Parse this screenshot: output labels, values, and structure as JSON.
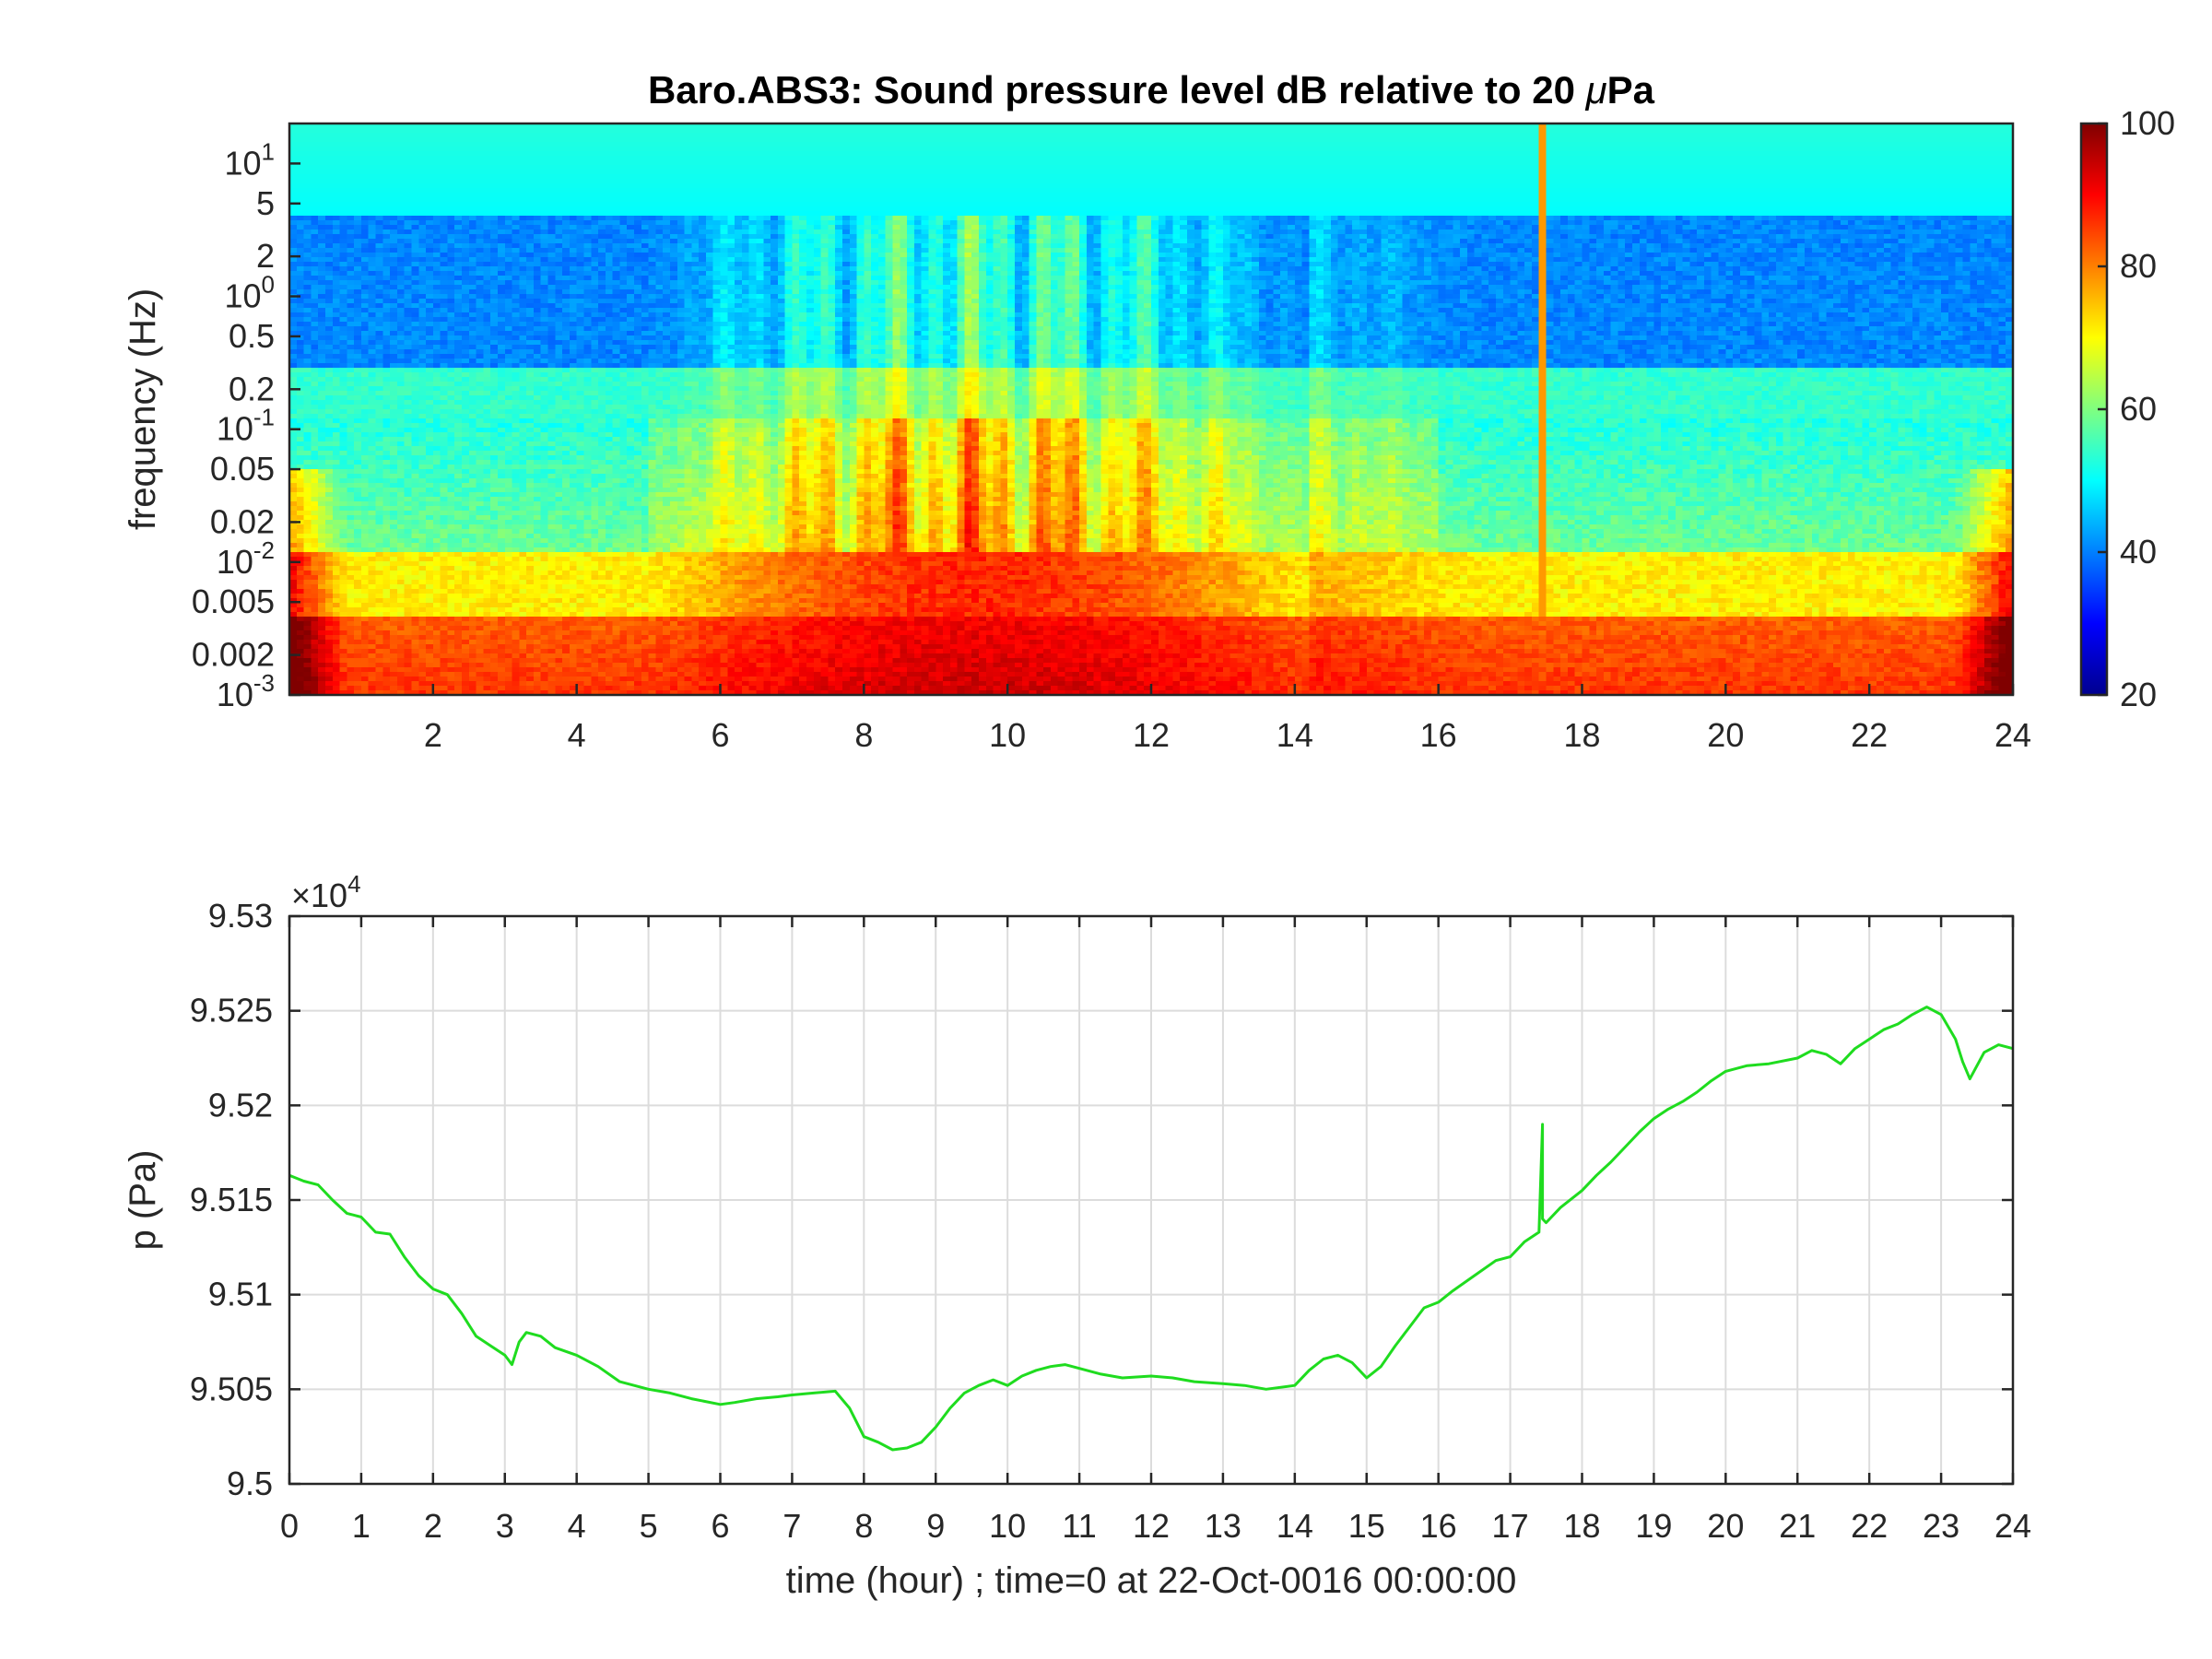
{
  "chart_data": [
    {
      "type": "heatmap",
      "title_prefix": "Baro.ABS3: Sound pressure level dB relative to 20 ",
      "title_mu": "μ",
      "title_suffix": "Pa",
      "xlabel": "",
      "ylabel": "frequency (Hz)",
      "xlim": [
        0,
        24
      ],
      "ylim": [
        0.001,
        20
      ],
      "yscale": "log",
      "x_ticks": [
        {
          "v": 2,
          "label": "2"
        },
        {
          "v": 4,
          "label": "4"
        },
        {
          "v": 6,
          "label": "6"
        },
        {
          "v": 8,
          "label": "8"
        },
        {
          "v": 10,
          "label": "10"
        },
        {
          "v": 12,
          "label": "12"
        },
        {
          "v": 14,
          "label": "14"
        },
        {
          "v": 16,
          "label": "16"
        },
        {
          "v": 18,
          "label": "18"
        },
        {
          "v": 20,
          "label": "20"
        },
        {
          "v": 22,
          "label": "22"
        },
        {
          "v": 24,
          "label": "24"
        }
      ],
      "y_ticks": [
        {
          "v": 10,
          "base": "10",
          "exp": "1",
          "label": ""
        },
        {
          "v": 5,
          "base": "",
          "exp": "",
          "label": "5"
        },
        {
          "v": 2,
          "base": "",
          "exp": "",
          "label": "2"
        },
        {
          "v": 1,
          "base": "10",
          "exp": "0",
          "label": ""
        },
        {
          "v": 0.5,
          "base": "",
          "exp": "",
          "label": "0.5"
        },
        {
          "v": 0.2,
          "base": "",
          "exp": "",
          "label": "0.2"
        },
        {
          "v": 0.1,
          "base": "10",
          "exp": "-1",
          "label": ""
        },
        {
          "v": 0.05,
          "base": "",
          "exp": "",
          "label": "0.05"
        },
        {
          "v": 0.02,
          "base": "",
          "exp": "",
          "label": "0.02"
        },
        {
          "v": 0.01,
          "base": "10",
          "exp": "-2",
          "label": ""
        },
        {
          "v": 0.005,
          "base": "",
          "exp": "",
          "label": "0.005"
        },
        {
          "v": 0.002,
          "base": "",
          "exp": "",
          "label": "0.002"
        },
        {
          "v": 0.001,
          "base": "10",
          "exp": "-3",
          "label": ""
        }
      ],
      "colormap": "jet",
      "clim": [
        20,
        100
      ],
      "colorbar_ticks": [
        "20",
        "40",
        "60",
        "80",
        "100"
      ],
      "colorbar_tick_values": [
        20,
        40,
        60,
        80,
        100
      ],
      "z_units": "dB",
      "z_description_by_time_freq": [
        {
          "x_range": [
            0,
            6
          ],
          "f_high_band_db": 52,
          "f_1Hz_db": 38,
          "f_0.05Hz_db": 55,
          "f_0.002Hz_db": 85
        },
        {
          "x_range": [
            6,
            14
          ],
          "f_high_band_db": 52,
          "f_1Hz_db": 58,
          "f_0.05Hz_db": 75,
          "f_0.002Hz_db": 88
        },
        {
          "x_range": [
            14,
            24
          ],
          "f_high_band_db": 52,
          "f_1Hz_db": 38,
          "f_0.05Hz_db": 52,
          "f_0.002Hz_db": 84
        }
      ]
    },
    {
      "type": "line",
      "xlabel": "time (hour) ; time=0 at 22-Oct-0016 00:00:00",
      "ylabel": "p (Pa)",
      "xlim": [
        0,
        24
      ],
      "ylim": [
        95000,
        95300
      ],
      "y_exponent_base": "×10",
      "y_exponent_power": "4",
      "grid": true,
      "x_ticks": [
        "0",
        "1",
        "2",
        "3",
        "4",
        "5",
        "6",
        "7",
        "8",
        "9",
        "10",
        "11",
        "12",
        "13",
        "14",
        "15",
        "16",
        "17",
        "18",
        "19",
        "20",
        "21",
        "22",
        "23",
        "24"
      ],
      "y_ticks": [
        {
          "v": 95000,
          "label": "9.5"
        },
        {
          "v": 95050,
          "label": "9.505"
        },
        {
          "v": 95100,
          "label": "9.51"
        },
        {
          "v": 95150,
          "label": "9.515"
        },
        {
          "v": 95200,
          "label": "9.52"
        },
        {
          "v": 95250,
          "label": "9.525"
        },
        {
          "v": 95300,
          "label": "9.53"
        }
      ],
      "series": [
        {
          "color": "#1fdc1f",
          "x": [
            0,
            0.2,
            0.4,
            0.6,
            0.8,
            1.0,
            1.2,
            1.4,
            1.6,
            1.8,
            2.0,
            2.2,
            2.4,
            2.6,
            2.8,
            3.0,
            3.1,
            3.2,
            3.3,
            3.5,
            3.7,
            4.0,
            4.3,
            4.6,
            5.0,
            5.3,
            5.6,
            6.0,
            6.2,
            6.5,
            6.8,
            7.0,
            7.3,
            7.6,
            7.8,
            8.0,
            8.2,
            8.4,
            8.6,
            8.8,
            9.0,
            9.2,
            9.4,
            9.6,
            9.8,
            10.0,
            10.2,
            10.4,
            10.6,
            10.8,
            11.0,
            11.3,
            11.6,
            12.0,
            12.3,
            12.6,
            13.0,
            13.3,
            13.6,
            14.0,
            14.2,
            14.4,
            14.6,
            14.8,
            15.0,
            15.2,
            15.4,
            15.6,
            15.8,
            16.0,
            16.2,
            16.5,
            16.8,
            17.0,
            17.2,
            17.4,
            17.45,
            17.45,
            17.5,
            17.7,
            18.0,
            18.2,
            18.4,
            18.6,
            18.8,
            19.0,
            19.2,
            19.4,
            19.6,
            19.8,
            20.0,
            20.3,
            20.6,
            21.0,
            21.2,
            21.4,
            21.6,
            21.8,
            22.0,
            22.2,
            22.4,
            22.6,
            22.8,
            23.0,
            23.2,
            23.3,
            23.4,
            23.6,
            23.8,
            24.0
          ],
          "y": [
            95163,
            95160,
            95158,
            95150,
            95143,
            95141,
            95133,
            95132,
            95120,
            95110,
            95103,
            95100,
            95090,
            95078,
            95073,
            95068,
            95063,
            95075,
            95080,
            95078,
            95072,
            95068,
            95062,
            95054,
            95050,
            95048,
            95045,
            95042,
            95043,
            95045,
            95046,
            95047,
            95048,
            95049,
            95040,
            95025,
            95022,
            95018,
            95019,
            95022,
            95030,
            95040,
            95048,
            95052,
            95055,
            95052,
            95057,
            95060,
            95062,
            95063,
            95061,
            95058,
            95056,
            95057,
            95056,
            95054,
            95053,
            95052,
            95050,
            95052,
            95060,
            95066,
            95068,
            95064,
            95056,
            95062,
            95073,
            95083,
            95093,
            95096,
            95102,
            95110,
            95118,
            95120,
            95128,
            95133,
            95190,
            95140,
            95138,
            95146,
            95155,
            95163,
            95170,
            95178,
            95186,
            95193,
            95198,
            95202,
            95207,
            95213,
            95218,
            95221,
            95222,
            95225,
            95229,
            95227,
            95222,
            95230,
            95235,
            95240,
            95243,
            95248,
            95252,
            95248,
            95235,
            95223,
            95214,
            95228,
            95232,
            95230
          ]
        }
      ]
    }
  ]
}
